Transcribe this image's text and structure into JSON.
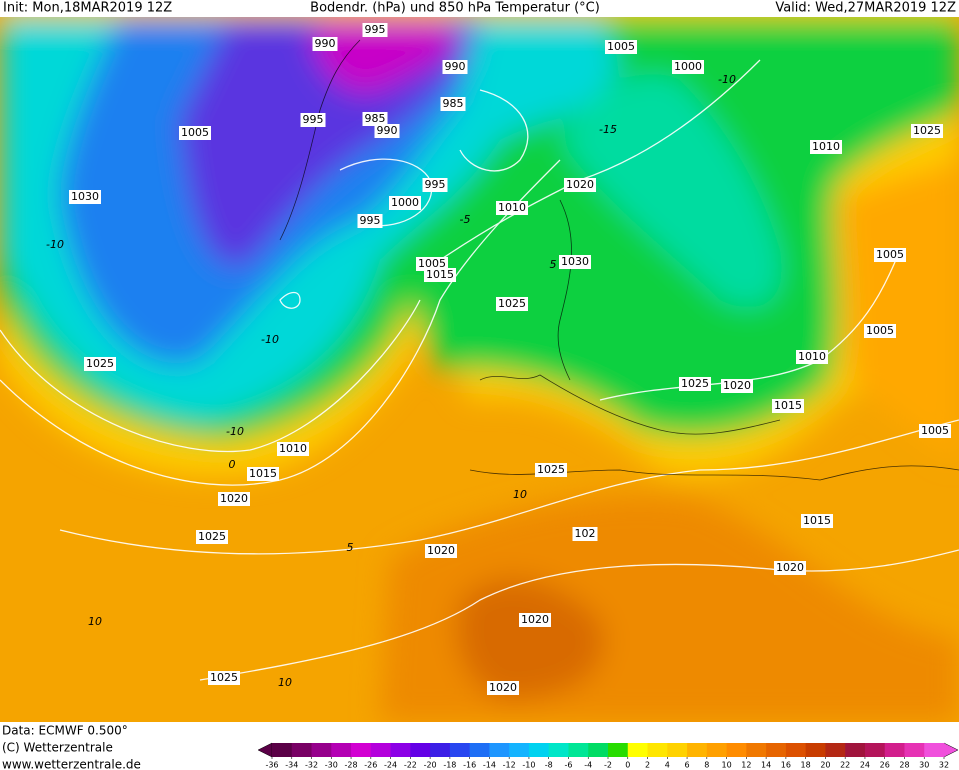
{
  "header": {
    "init": "Init: Mon,18MAR2019 12Z",
    "title": "Bodendr. (hPa) und 850 hPa Temperatur (°C)",
    "valid": "Valid: Wed,27MAR2019 12Z"
  },
  "isobar_labels": [
    995,
    990,
    990,
    1005,
    1000,
    1005,
    995,
    985,
    990,
    985,
    1010,
    1025,
    1030,
    1020,
    995,
    1000,
    1010,
    995,
    1005,
    1030,
    1005,
    1015,
    1025,
    1005,
    1010,
    1025,
    1025,
    1020,
    1015,
    1010,
    1005,
    1015,
    1025,
    1020,
    1015,
    1025,
    102,
    1020,
    1020,
    1020,
    1025,
    1020
  ],
  "temperature_labels": [
    -10,
    -10,
    -10,
    0,
    5,
    10,
    10,
    -15,
    -10,
    10,
    -5,
    5
  ],
  "footer": {
    "data": "Data: ECMWF  0.500°",
    "copyright": "(C) Wetterzentrale",
    "url": "www.wetterzentrale.de"
  },
  "colorbar": {
    "ticks": [
      -36,
      -34,
      -32,
      -30,
      -28,
      -26,
      -24,
      -22,
      -20,
      -18,
      -16,
      -14,
      -12,
      -10,
      -8,
      -6,
      -4,
      -2,
      0,
      2,
      4,
      6,
      8,
      10,
      12,
      14,
      16,
      18,
      20,
      22,
      24,
      26,
      28,
      30,
      32
    ],
    "colors": [
      "#5a0046",
      "#780064",
      "#96008c",
      "#b400b4",
      "#d200d2",
      "#b400dc",
      "#8c00e6",
      "#6400e6",
      "#3c1ee6",
      "#2846f0",
      "#1e6ef5",
      "#1e96ff",
      "#14b4ff",
      "#00d2f0",
      "#00e6c8",
      "#00e696",
      "#00dc64",
      "#28dc00",
      "#ffff00",
      "#ffe600",
      "#ffd200",
      "#ffb400",
      "#ffa000",
      "#ff8c00",
      "#f07800",
      "#e66400",
      "#dc5000",
      "#c83c00",
      "#b42814",
      "#a0143c",
      "#b4145a",
      "#d21e8c",
      "#e632b4",
      "#f050dc"
    ]
  }
}
